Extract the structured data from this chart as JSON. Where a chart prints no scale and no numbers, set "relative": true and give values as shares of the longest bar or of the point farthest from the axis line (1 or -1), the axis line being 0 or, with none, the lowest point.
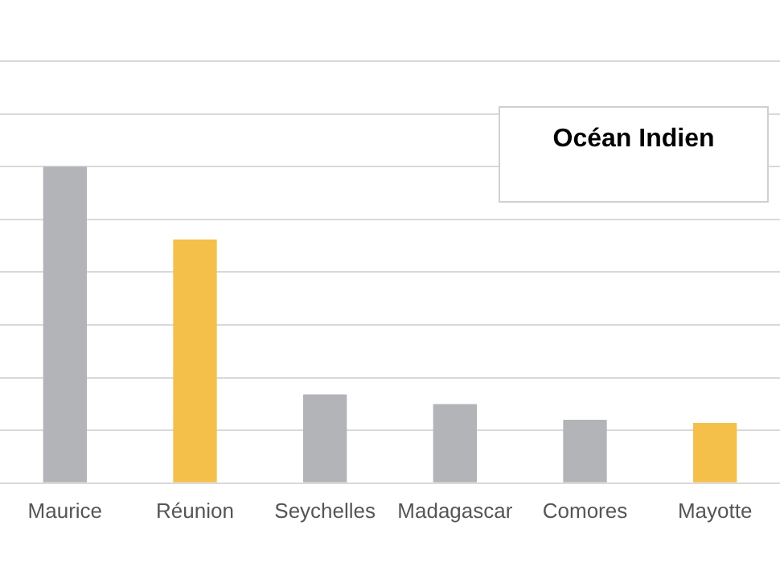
{
  "chart_data": {
    "type": "bar",
    "categories": [
      "Maurice",
      "Réunion",
      "Seychelles",
      "Madagascar",
      "Comores",
      "Mayotte"
    ],
    "values": [
      1,
      0.77,
      0.28,
      0.25,
      0.2,
      0.19
    ],
    "colors": [
      "#b3b4b8",
      "#f5c04a",
      "#b3b4b8",
      "#b3b4b8",
      "#b3b4b8",
      "#f5c04a"
    ],
    "relative": true,
    "grid": "y",
    "legend": false,
    "annotations": [
      "Océan Indien"
    ]
  }
}
